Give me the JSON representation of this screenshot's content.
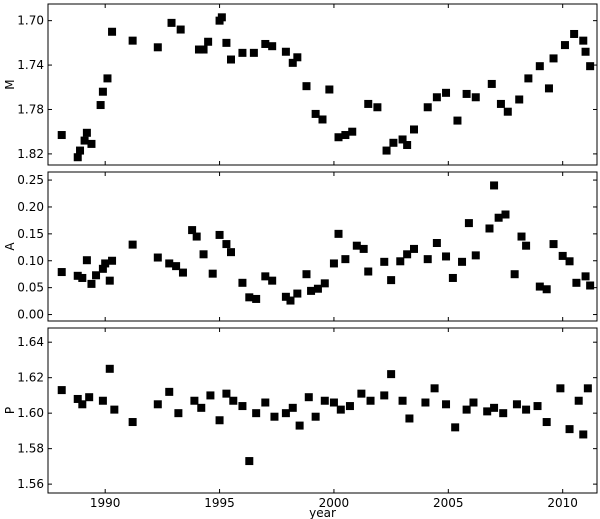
{
  "chart_data": [
    {
      "type": "scatter",
      "ylabel": "M",
      "xlim": [
        1987.5,
        2011.5
      ],
      "ylim": [
        1.685,
        1.83
      ],
      "y_inverted": true,
      "yticks": [
        1.7,
        1.74,
        1.78,
        1.82
      ],
      "ytick_labels": [
        "1.70",
        "1.74",
        "1.78",
        "1.82"
      ],
      "x": [
        1988.1,
        1988.8,
        1988.9,
        1989.1,
        1989.2,
        1989.4,
        1989.8,
        1989.9,
        1990.1,
        1990.3,
        1991.2,
        1992.3,
        1992.9,
        1993.3,
        1994.1,
        1994.3,
        1994.5,
        1995.0,
        1995.1,
        1995.3,
        1995.5,
        1996.0,
        1996.5,
        1997.0,
        1997.3,
        1997.9,
        1998.2,
        1998.4,
        1998.8,
        1999.2,
        1999.5,
        1999.8,
        2000.2,
        2000.5,
        2000.8,
        2001.5,
        2001.9,
        2002.3,
        2002.6,
        2003.0,
        2003.2,
        2003.5,
        2004.1,
        2004.5,
        2004.9,
        2005.4,
        2005.8,
        2006.2,
        2006.9,
        2007.3,
        2007.6,
        2008.1,
        2008.5,
        2009.0,
        2009.4,
        2009.6,
        2010.1,
        2010.5,
        2010.9,
        2011.0,
        2011.2
      ],
      "y": [
        1.803,
        1.823,
        1.817,
        1.808,
        1.801,
        1.811,
        1.776,
        1.764,
        1.752,
        1.71,
        1.718,
        1.724,
        1.702,
        1.708,
        1.726,
        1.726,
        1.719,
        1.7,
        1.697,
        1.72,
        1.735,
        1.729,
        1.729,
        1.721,
        1.723,
        1.728,
        1.738,
        1.733,
        1.759,
        1.784,
        1.789,
        1.762,
        1.805,
        1.803,
        1.8,
        1.775,
        1.778,
        1.817,
        1.81,
        1.807,
        1.812,
        1.798,
        1.778,
        1.769,
        1.765,
        1.79,
        1.766,
        1.769,
        1.757,
        1.775,
        1.782,
        1.771,
        1.752,
        1.741,
        1.761,
        1.734,
        1.722,
        1.712,
        1.718,
        1.728,
        1.741
      ]
    },
    {
      "type": "scatter",
      "ylabel": "A",
      "xlim": [
        1987.5,
        2011.5
      ],
      "ylim": [
        -0.012,
        0.265
      ],
      "yticks": [
        0.0,
        0.05,
        0.1,
        0.15,
        0.2,
        0.25
      ],
      "ytick_labels": [
        "0.00",
        "0.05",
        "0.10",
        "0.15",
        "0.20",
        "0.25"
      ],
      "x": [
        1988.1,
        1988.8,
        1989.0,
        1989.2,
        1989.4,
        1989.6,
        1989.9,
        1990.0,
        1990.2,
        1990.3,
        1991.2,
        1992.3,
        1992.8,
        1993.1,
        1993.4,
        1993.8,
        1994.0,
        1994.3,
        1994.7,
        1995.0,
        1995.3,
        1995.5,
        1996.0,
        1996.3,
        1996.6,
        1997.0,
        1997.3,
        1997.9,
        1998.1,
        1998.4,
        1998.8,
        1999.0,
        1999.3,
        1999.6,
        2000.0,
        2000.2,
        2000.5,
        2001.0,
        2001.3,
        2001.5,
        2002.2,
        2002.5,
        2002.9,
        2003.2,
        2003.5,
        2004.1,
        2004.5,
        2004.9,
        2005.2,
        2005.6,
        2005.9,
        2006.2,
        2006.8,
        2007.0,
        2007.2,
        2007.5,
        2007.9,
        2008.2,
        2008.4,
        2009.0,
        2009.3,
        2009.6,
        2010.0,
        2010.3,
        2010.6,
        2011.0,
        2011.2
      ],
      "y": [
        0.079,
        0.072,
        0.068,
        0.101,
        0.057,
        0.073,
        0.085,
        0.095,
        0.063,
        0.1,
        0.13,
        0.106,
        0.095,
        0.09,
        0.078,
        0.157,
        0.145,
        0.112,
        0.076,
        0.148,
        0.131,
        0.116,
        0.059,
        0.032,
        0.029,
        0.071,
        0.063,
        0.033,
        0.026,
        0.039,
        0.075,
        0.044,
        0.048,
        0.058,
        0.095,
        0.15,
        0.103,
        0.128,
        0.122,
        0.08,
        0.098,
        0.064,
        0.099,
        0.112,
        0.122,
        0.103,
        0.133,
        0.108,
        0.068,
        0.098,
        0.17,
        0.11,
        0.16,
        0.24,
        0.18,
        0.186,
        0.075,
        0.145,
        0.128,
        0.052,
        0.047,
        0.131,
        0.109,
        0.099,
        0.059,
        0.071,
        0.054
      ]
    },
    {
      "type": "scatter",
      "xlabel": "year",
      "ylabel": "P",
      "xlim": [
        1987.5,
        2011.5
      ],
      "ylim": [
        1.555,
        1.648
      ],
      "yticks": [
        1.56,
        1.58,
        1.6,
        1.62,
        1.64
      ],
      "ytick_labels": [
        "1.56",
        "1.58",
        "1.60",
        "1.62",
        "1.64"
      ],
      "xticks": [
        1990,
        1995,
        2000,
        2005,
        2010
      ],
      "xtick_labels": [
        "1990",
        "1995",
        "2000",
        "2005",
        "2010"
      ],
      "x": [
        1988.1,
        1988.8,
        1989.0,
        1989.3,
        1989.9,
        1990.2,
        1990.4,
        1991.2,
        1992.3,
        1992.8,
        1993.2,
        1993.9,
        1994.2,
        1994.6,
        1995.0,
        1995.3,
        1995.6,
        1996.0,
        1996.3,
        1996.6,
        1997.0,
        1997.4,
        1997.9,
        1998.2,
        1998.5,
        1998.9,
        1999.2,
        1999.6,
        2000.0,
        2000.3,
        2000.7,
        2001.2,
        2001.6,
        2002.2,
        2002.5,
        2003.0,
        2003.3,
        2004.0,
        2004.4,
        2004.9,
        2005.3,
        2005.8,
        2006.1,
        2006.7,
        2007.0,
        2007.4,
        2008.0,
        2008.4,
        2008.9,
        2009.3,
        2009.9,
        2010.3,
        2010.7,
        2010.9,
        2011.1
      ],
      "y": [
        1.613,
        1.608,
        1.605,
        1.609,
        1.607,
        1.625,
        1.602,
        1.595,
        1.605,
        1.612,
        1.6,
        1.607,
        1.603,
        1.61,
        1.596,
        1.611,
        1.607,
        1.604,
        1.573,
        1.6,
        1.606,
        1.598,
        1.6,
        1.603,
        1.593,
        1.609,
        1.598,
        1.607,
        1.606,
        1.602,
        1.604,
        1.611,
        1.607,
        1.61,
        1.622,
        1.607,
        1.597,
        1.606,
        1.614,
        1.605,
        1.592,
        1.602,
        1.606,
        1.601,
        1.603,
        1.6,
        1.605,
        1.602,
        1.604,
        1.595,
        1.614,
        1.591,
        1.607,
        1.588,
        1.614
      ]
    }
  ]
}
